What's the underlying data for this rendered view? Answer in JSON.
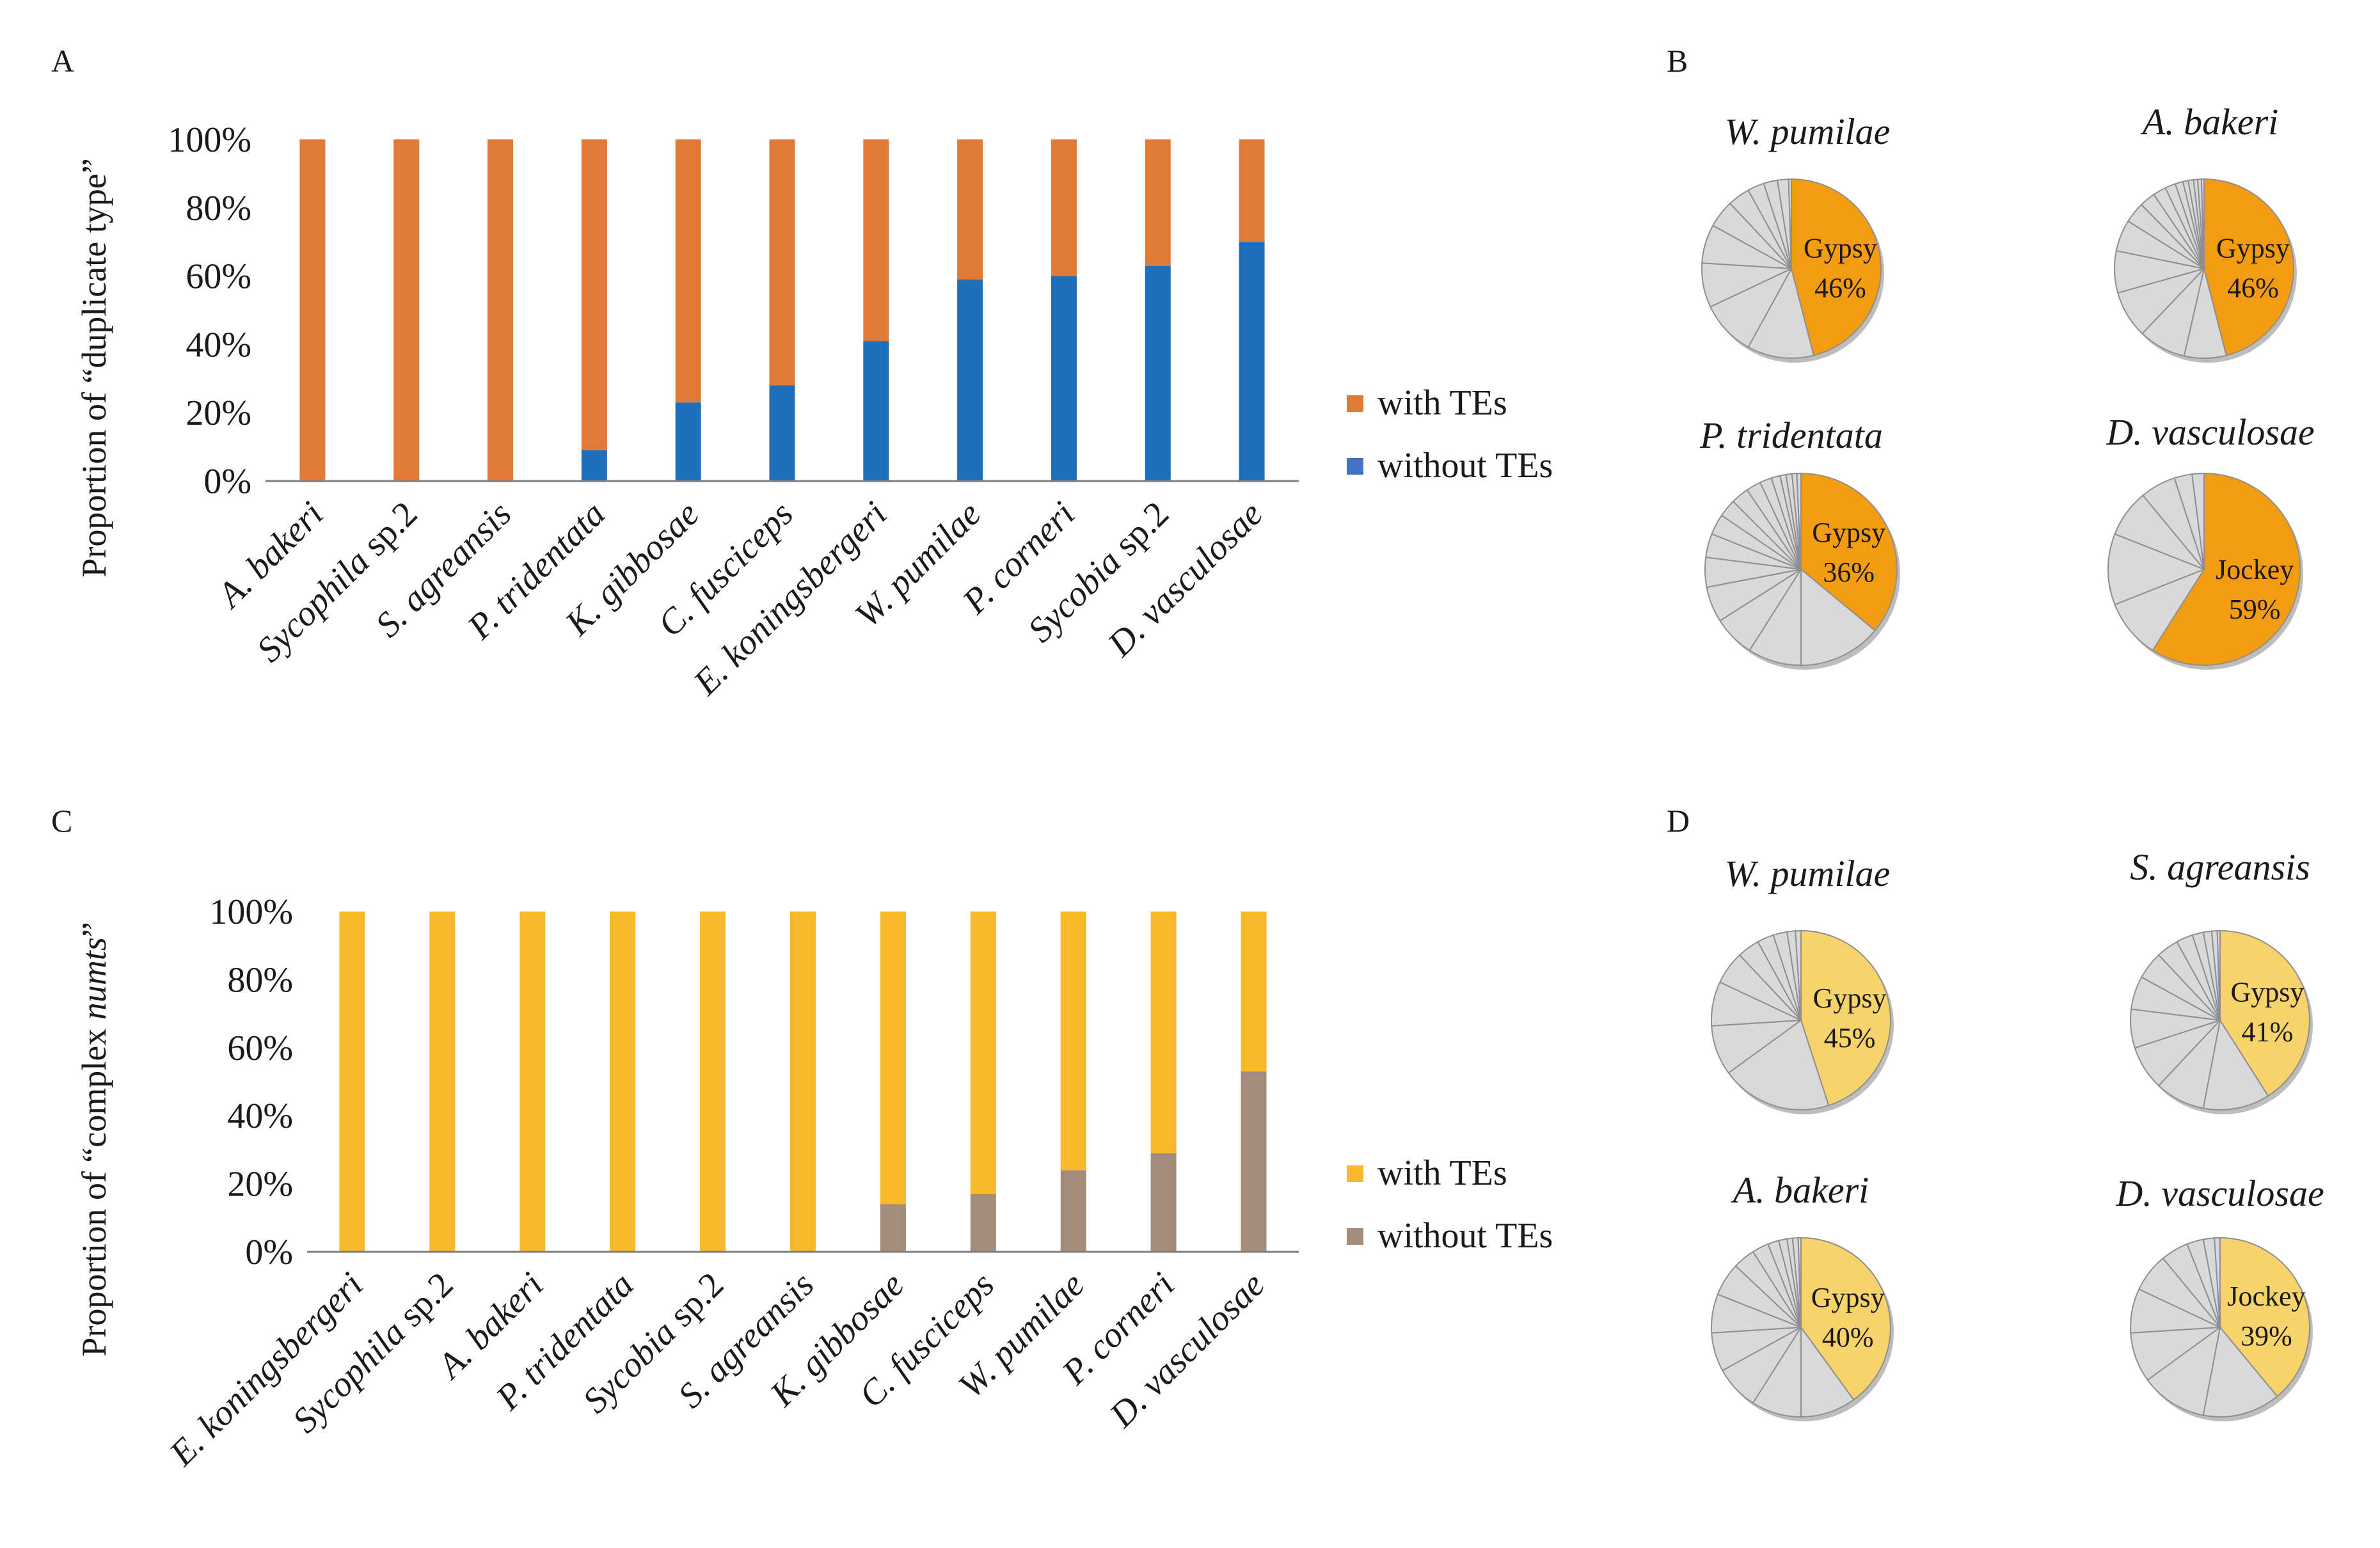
{
  "panels": {
    "a": "A",
    "b": "B",
    "c": "C",
    "d": "D"
  },
  "colors": {
    "orange": "#E07A36",
    "blue": "#1F6EBA",
    "yellow": "#F7B92A",
    "brown": "#A48B7A",
    "pie_orange": "#F39C12",
    "pie_yellow": "#F7D36B",
    "pie_grey": "#D9D9D9"
  },
  "chart_data": [
    {
      "id": "A",
      "type": "bar",
      "stacked": true,
      "ylabel_before": "Proportion of “duplicate type”",
      "ylabel_italic": "",
      "ylabel_after": "",
      "ylim": [
        0,
        100
      ],
      "ytick_labels": [
        "0%",
        "20%",
        "40%",
        "60%",
        "80%",
        "100%"
      ],
      "categories": [
        {
          "italic": "A. bakeri",
          "plain": ""
        },
        {
          "italic": "Sycophila",
          "plain": " sp.2"
        },
        {
          "italic": "S. agreansis",
          "plain": ""
        },
        {
          "italic": "P. tridentata",
          "plain": ""
        },
        {
          "italic": "K. gibbosae",
          "plain": ""
        },
        {
          "italic": "C. fusciceps",
          "plain": ""
        },
        {
          "italic": "E. koningsbergeri",
          "plain": ""
        },
        {
          "italic": "W. pumilae",
          "plain": ""
        },
        {
          "italic": "P. corneri",
          "plain": ""
        },
        {
          "italic": "Sycobia",
          "plain": " sp.2"
        },
        {
          "italic": "D. vasculosae",
          "plain": ""
        }
      ],
      "series": [
        {
          "name": "without TEs",
          "color": "#1F6EBA",
          "values": [
            0,
            0,
            0,
            9,
            23,
            28,
            41,
            59,
            60,
            63,
            70
          ]
        },
        {
          "name": "with TEs",
          "color": "#E07A36",
          "values": [
            100,
            100,
            100,
            91,
            77,
            72,
            59,
            41,
            40,
            37,
            30
          ]
        }
      ],
      "legend": [
        {
          "name": "with TEs",
          "color": "#E07A36"
        },
        {
          "name": "without TEs",
          "color": "#4472C4"
        }
      ]
    },
    {
      "id": "C",
      "type": "bar",
      "stacked": true,
      "ylabel_before": "Proportion of “complex ",
      "ylabel_italic": "numts",
      "ylabel_after": "”",
      "ylim": [
        0,
        100
      ],
      "ytick_labels": [
        "0%",
        "20%",
        "40%",
        "60%",
        "80%",
        "100%"
      ],
      "categories": [
        {
          "italic": "E. koningsbergeri",
          "plain": ""
        },
        {
          "italic": "Sycophila",
          "plain": " sp.2"
        },
        {
          "italic": "A. bakeri",
          "plain": ""
        },
        {
          "italic": "P. tridentata",
          "plain": ""
        },
        {
          "italic": "Sycobia",
          "plain": " sp.2"
        },
        {
          "italic": "S. agreansis",
          "plain": ""
        },
        {
          "italic": "K. gibbosae",
          "plain": ""
        },
        {
          "italic": "C. fusciceps",
          "plain": ""
        },
        {
          "italic": "W. pumilae",
          "plain": ""
        },
        {
          "italic": "P. corneri",
          "plain": ""
        },
        {
          "italic": "D. vasculosae",
          "plain": ""
        }
      ],
      "series": [
        {
          "name": "without TEs",
          "color": "#A48B7A",
          "values": [
            0,
            0,
            0,
            0,
            0,
            0,
            14,
            17,
            24,
            29,
            53
          ]
        },
        {
          "name": "with TEs",
          "color": "#F7B92A",
          "values": [
            100,
            100,
            100,
            100,
            100,
            100,
            86,
            83,
            76,
            71,
            47
          ]
        }
      ],
      "legend": [
        {
          "name": "with TEs",
          "color": "#F7B92A"
        },
        {
          "name": "without TEs",
          "color": "#A48B7A"
        }
      ]
    },
    {
      "id": "B",
      "type": "pie",
      "charts": [
        {
          "title": "W. pumilae",
          "label": "Gypsy",
          "percent": "46%",
          "highlight": 46,
          "color": "#F39C12",
          "others": [
            12,
            10,
            8,
            7,
            5,
            4,
            3,
            2.5,
            2,
            0.5
          ]
        },
        {
          "title": "A. bakeri",
          "label": "Gypsy",
          "percent": "46%",
          "highlight": 46,
          "color": "#F39C12",
          "others": [
            8,
            9,
            9,
            8,
            6,
            4,
            3,
            2.5,
            2,
            1.5,
            1,
            1,
            0.8,
            0.7,
            0.5
          ]
        },
        {
          "title": "P. tridentata",
          "label": "Gypsy",
          "percent": "36%",
          "highlight": 36,
          "color": "#F39C12",
          "others": [
            14,
            9,
            7,
            6,
            5,
            4,
            3.5,
            3,
            3,
            2.5,
            2,
            1.5,
            1,
            1,
            0.8,
            0.7
          ]
        },
        {
          "title": "D. vasculosae",
          "label": "Jockey",
          "percent": "59%",
          "highlight": 59,
          "color": "#F39C12",
          "others": [
            10,
            12,
            8,
            6,
            3,
            2
          ]
        }
      ]
    },
    {
      "id": "D",
      "type": "pie",
      "charts": [
        {
          "title": "W. pumilae",
          "label": "Gypsy",
          "percent": "45%",
          "highlight": 45,
          "color": "#F7D36B",
          "others": [
            20,
            9,
            8,
            6,
            4,
            3,
            2.5,
            1.5,
            1
          ]
        },
        {
          "title": "S. agreansis",
          "label": "Gypsy",
          "percent": "41%",
          "highlight": 41,
          "color": "#F7D36B",
          "others": [
            12,
            9,
            8,
            7,
            6,
            5,
            4,
            3,
            2,
            1.5,
            1,
            0.5
          ]
        },
        {
          "title": "A. bakeri",
          "label": "Gypsy",
          "percent": "40%",
          "highlight": 40,
          "color": "#F7D36B",
          "others": [
            10,
            9,
            8,
            7,
            7,
            6,
            4,
            3,
            2,
            1.5,
            1,
            1,
            0.5
          ]
        },
        {
          "title": "D. vasculosae",
          "label": "Jockey",
          "percent": "39%",
          "highlight": 39,
          "color": "#F7D36B",
          "others": [
            14,
            12,
            9,
            8,
            7,
            5,
            3,
            2,
            1
          ]
        }
      ]
    }
  ]
}
